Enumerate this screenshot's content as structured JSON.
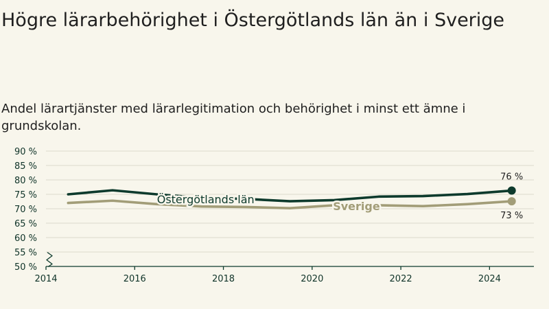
{
  "title": "Högre lärarbehörighet i Östergötlands län än i Sverige",
  "subtitle": "Andel lärartjänster med lärarlegitimation och behörighet i minst ett ämne i grundskolan.",
  "colors": {
    "background": "#f8f6ec",
    "ostergotland": "#0d3a2c",
    "sverige": "#a29d78",
    "grid": "#dcd9cb",
    "axis": "#0d3a2c"
  },
  "chart_data": {
    "type": "line",
    "title": "Högre lärarbehörighet i Östergötlands län än i Sverige",
    "subtitle": "Andel lärartjänster med lärarlegitimation och behörighet i minst ett ämne i grundskolan.",
    "xlim": [
      2014,
      2025
    ],
    "ylim": [
      50,
      90
    ],
    "y_ticks": [
      50,
      55,
      60,
      65,
      70,
      75,
      80,
      85,
      90
    ],
    "y_tick_labels": [
      "50 %",
      "55 %",
      "60 %",
      "65 %",
      "70 %",
      "75 %",
      "80 %",
      "85 %",
      "90 %"
    ],
    "x_ticks": [
      2014,
      2016,
      2018,
      2020,
      2022,
      2024
    ],
    "x_tick_labels": [
      "2014",
      "2016",
      "2018",
      "2020",
      "2022",
      "2024"
    ],
    "axis_break": true,
    "grid": "horizontal",
    "series": [
      {
        "name": "Östergötlands län",
        "color": "#0d3a2c",
        "x": [
          2014.5,
          2015.5,
          2016.5,
          2017.5,
          2018.5,
          2019.5,
          2020.5,
          2021.5,
          2022.5,
          2023.5,
          2024.5
        ],
        "values": [
          75.0,
          76.4,
          75.0,
          73.8,
          73.4,
          72.6,
          73.0,
          74.2,
          74.4,
          75.1,
          76.3
        ],
        "end_label": "76 %",
        "label_x": 2017.6,
        "label_y": 73.3
      },
      {
        "name": "Sverige",
        "color": "#a29d78",
        "x": [
          2014.5,
          2015.5,
          2016.5,
          2017.5,
          2018.5,
          2019.5,
          2020.5,
          2021.5,
          2022.5,
          2023.5,
          2024.5
        ],
        "values": [
          72.0,
          72.8,
          71.6,
          70.8,
          70.6,
          70.2,
          71.2,
          71.2,
          70.9,
          71.6,
          72.6
        ],
        "end_label": "73 %",
        "label_x": 2021.0,
        "label_y": 71.0
      }
    ]
  }
}
